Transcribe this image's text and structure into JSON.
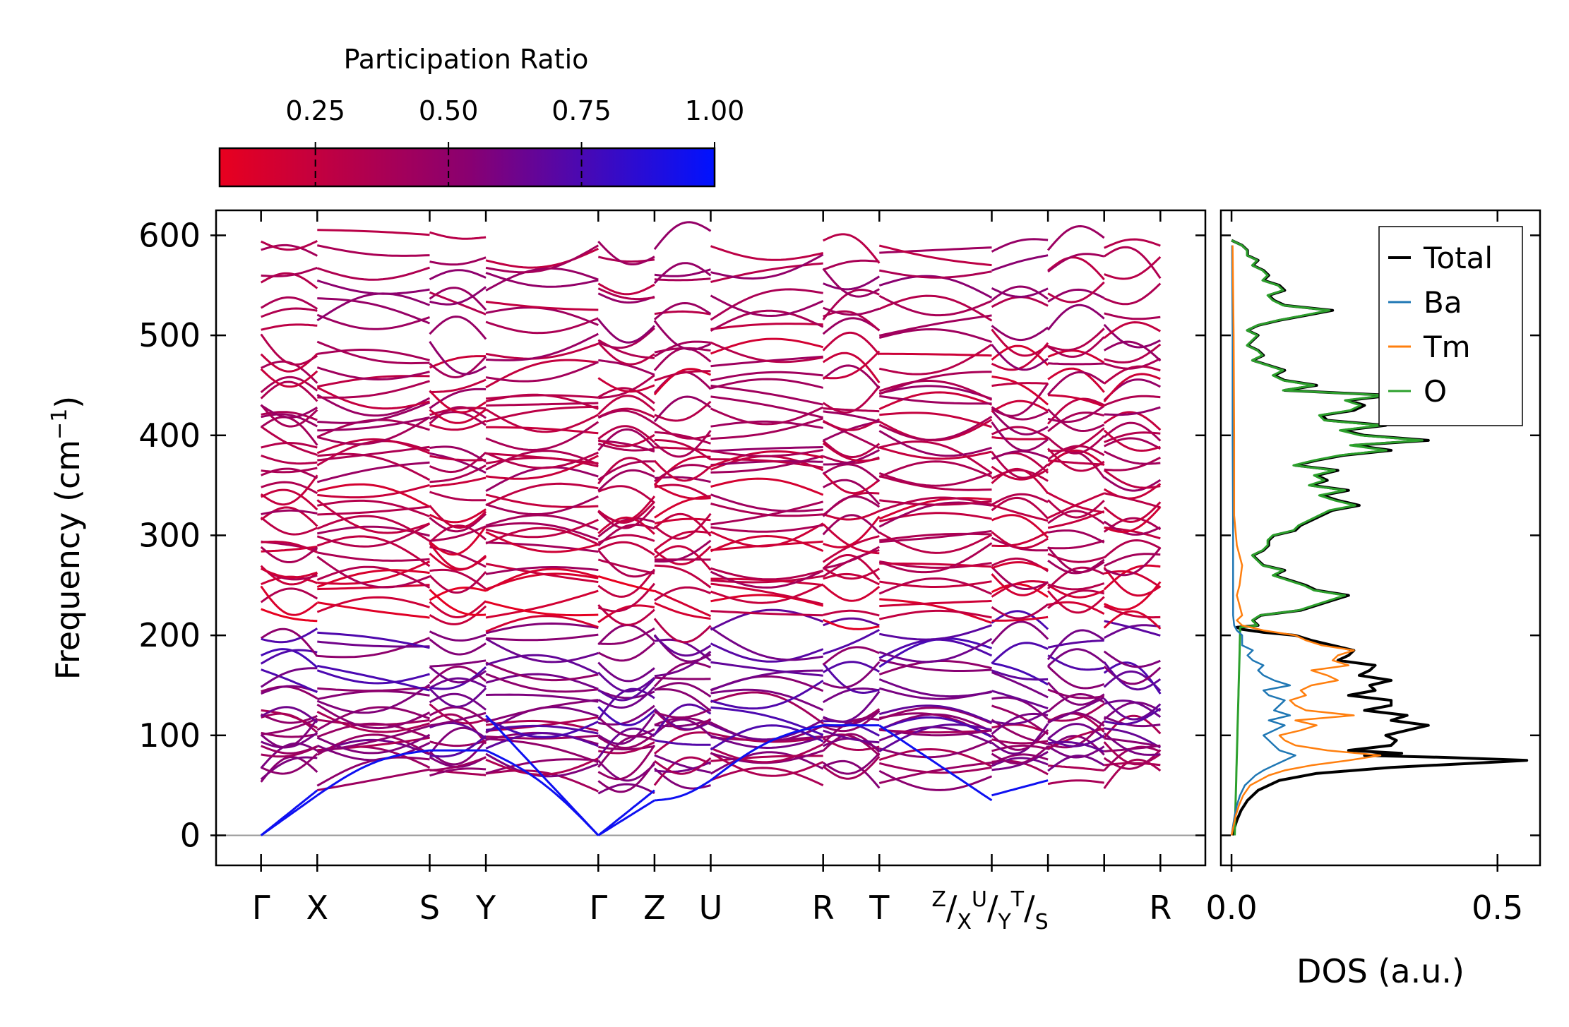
{
  "chart_data": [
    {
      "type": "line",
      "name": "phonon-band-structure",
      "ylabel": "Frequency (cm",
      "ylabel_sup": "−1",
      "ylabel_close": ")",
      "ylim": [
        -30,
        625
      ],
      "yticks": [
        "0",
        "100",
        "200",
        "300",
        "400",
        "500",
        "600"
      ],
      "yticks_values": [
        0,
        100,
        200,
        300,
        400,
        500,
        600
      ],
      "path_labels": [
        "Γ",
        "X",
        "S",
        "Y",
        "Γ",
        "Z",
        "U",
        "R",
        "T",
        "R"
      ],
      "path_positions": [
        0,
        1,
        3,
        4,
        6,
        7,
        8,
        10,
        11,
        16.0
      ],
      "x_extent": [
        -0.8,
        16.8
      ],
      "break_positions": [
        13,
        14,
        15
      ],
      "break_label_parts": {
        "z": "Z",
        "x": "X",
        "u": "U",
        "y": "Y",
        "t": "T",
        "s": "S",
        "slash": "/"
      },
      "colorbar": {
        "label": "Participation Ratio",
        "ticks": [
          "0.25",
          "0.50",
          "0.75",
          "1.00"
        ],
        "tick_values": [
          0.25,
          0.5,
          0.75,
          1.0
        ],
        "range": [
          0.07,
          1.0
        ],
        "low_color": "#e8001f",
        "mid_color": "#8a0070",
        "high_color": "#0012ff"
      },
      "bands_approx": [
        {
          "segment": "Gamma-X",
          "freqs": [
            0,
            40,
            70,
            85,
            120,
            180,
            225,
            245,
            290,
            330,
            390,
            460,
            540,
            570
          ]
        },
        {
          "segment": "S-Y",
          "freqs": [
            85,
            100,
            120,
            160,
            200,
            240,
            300,
            330,
            400,
            430,
            510,
            530
          ]
        },
        {
          "segment": "Gamma-Z",
          "freqs": [
            0,
            35,
            80,
            100,
            150,
            185,
            260,
            300,
            390,
            440,
            540,
            590
          ]
        },
        {
          "segment": "U-R",
          "freqs": [
            55,
            95,
            130,
            190,
            215,
            240,
            280,
            320,
            390,
            420,
            510,
            590
          ]
        },
        {
          "segment": "T-Z",
          "freqs": [
            35,
            90,
            120,
            200,
            250,
            300,
            360,
            430,
            470,
            530,
            590
          ]
        }
      ]
    },
    {
      "type": "line",
      "name": "density-of-states",
      "xlabel": "DOS (a.u.)",
      "xticks": [
        "0.0",
        "0.5"
      ],
      "xticks_values": [
        0.0,
        0.5
      ],
      "xlim": [
        -0.02,
        0.58
      ],
      "ylim": [
        -30,
        625
      ],
      "legend_position": "top-right",
      "series": [
        {
          "name": "Total",
          "color": "#000000",
          "freq": [
            0,
            5,
            15,
            25,
            35,
            45,
            55,
            62,
            68,
            72,
            75,
            78,
            80,
            82,
            85,
            90,
            95,
            100,
            105,
            110,
            115,
            120,
            125,
            130,
            135,
            140,
            145,
            150,
            155,
            160,
            165,
            170,
            175,
            180,
            185,
            190,
            195,
            200,
            203,
            206,
            208,
            210,
            215,
            220,
            225,
            230,
            235,
            240,
            245,
            250,
            255,
            260,
            265,
            270,
            275,
            280,
            285,
            290,
            295,
            300,
            305,
            310,
            315,
            320,
            325,
            330,
            335,
            340,
            345,
            350,
            355,
            360,
            365,
            370,
            375,
            380,
            385,
            390,
            395,
            400,
            405,
            410,
            415,
            420,
            425,
            430,
            435,
            440,
            445,
            450,
            455,
            460,
            465,
            470,
            475,
            480,
            485,
            490,
            495,
            500,
            505,
            510,
            515,
            520,
            525,
            530,
            535,
            540,
            545,
            550,
            555,
            560,
            565,
            570,
            575,
            580,
            585,
            590,
            595
          ],
          "values": [
            0.002,
            0.004,
            0.01,
            0.018,
            0.03,
            0.05,
            0.09,
            0.16,
            0.3,
            0.45,
            0.555,
            0.4,
            0.25,
            0.32,
            0.22,
            0.3,
            0.31,
            0.29,
            0.33,
            0.37,
            0.3,
            0.33,
            0.25,
            0.3,
            0.3,
            0.22,
            0.27,
            0.26,
            0.3,
            0.24,
            0.26,
            0.27,
            0.2,
            0.22,
            0.23,
            0.19,
            0.15,
            0.12,
            0.06,
            0.02,
            0.01,
            0.05,
            0.04,
            0.055,
            0.13,
            0.16,
            0.19,
            0.22,
            0.16,
            0.14,
            0.11,
            0.08,
            0.1,
            0.06,
            0.05,
            0.04,
            0.06,
            0.07,
            0.07,
            0.08,
            0.12,
            0.13,
            0.15,
            0.17,
            0.19,
            0.24,
            0.2,
            0.17,
            0.22,
            0.15,
            0.18,
            0.16,
            0.2,
            0.12,
            0.16,
            0.21,
            0.3,
            0.23,
            0.37,
            0.25,
            0.21,
            0.29,
            0.18,
            0.17,
            0.23,
            0.25,
            0.22,
            0.3,
            0.1,
            0.16,
            0.1,
            0.08,
            0.1,
            0.07,
            0.04,
            0.06,
            0.05,
            0.03,
            0.04,
            0.05,
            0.03,
            0.05,
            0.09,
            0.14,
            0.19,
            0.1,
            0.08,
            0.07,
            0.1,
            0.09,
            0.06,
            0.07,
            0.06,
            0.04,
            0.05,
            0.03,
            0.03,
            0.02,
            0.0
          ]
        },
        {
          "name": "Ba",
          "color": "#1f77b4",
          "freq": [
            0,
            10,
            20,
            30,
            40,
            50,
            60,
            65,
            70,
            75,
            80,
            85,
            90,
            95,
            100,
            105,
            110,
            115,
            120,
            125,
            130,
            135,
            140,
            145,
            150,
            155,
            160,
            165,
            170,
            175,
            180,
            185,
            190,
            195,
            200,
            205,
            210,
            220,
            300,
            400,
            500,
            590
          ],
          "values": [
            0.0,
            0.003,
            0.006,
            0.01,
            0.016,
            0.025,
            0.045,
            0.06,
            0.08,
            0.1,
            0.12,
            0.09,
            0.08,
            0.07,
            0.06,
            0.08,
            0.1,
            0.07,
            0.11,
            0.08,
            0.09,
            0.1,
            0.07,
            0.06,
            0.11,
            0.08,
            0.06,
            0.05,
            0.06,
            0.04,
            0.03,
            0.04,
            0.02,
            0.02,
            0.02,
            0.01,
            0.005,
            0.003,
            0.003,
            0.002,
            0.002,
            0.001
          ]
        },
        {
          "name": "Tm",
          "color": "#ff7f0e",
          "freq": [
            0,
            10,
            20,
            30,
            40,
            50,
            60,
            65,
            70,
            75,
            80,
            85,
            90,
            95,
            100,
            105,
            110,
            115,
            120,
            125,
            130,
            135,
            140,
            145,
            150,
            155,
            160,
            165,
            170,
            175,
            180,
            185,
            190,
            195,
            200,
            205,
            210,
            215,
            220,
            230,
            240,
            250,
            270,
            290,
            320,
            400,
            500,
            590
          ],
          "values": [
            0.0,
            0.004,
            0.008,
            0.014,
            0.022,
            0.035,
            0.07,
            0.1,
            0.15,
            0.22,
            0.28,
            0.18,
            0.12,
            0.1,
            0.09,
            0.13,
            0.16,
            0.12,
            0.23,
            0.14,
            0.12,
            0.11,
            0.14,
            0.13,
            0.15,
            0.2,
            0.18,
            0.15,
            0.22,
            0.19,
            0.2,
            0.23,
            0.17,
            0.14,
            0.12,
            0.06,
            0.02,
            0.01,
            0.02,
            0.015,
            0.01,
            0.015,
            0.02,
            0.01,
            0.005,
            0.005,
            0.004,
            0.002
          ]
        }
      ],
      "O_series_name": "O",
      "O_color": "#2ca02c",
      "O_note": "O curve follows Total above ~210 cm-1 and stays near zero below"
    }
  ]
}
